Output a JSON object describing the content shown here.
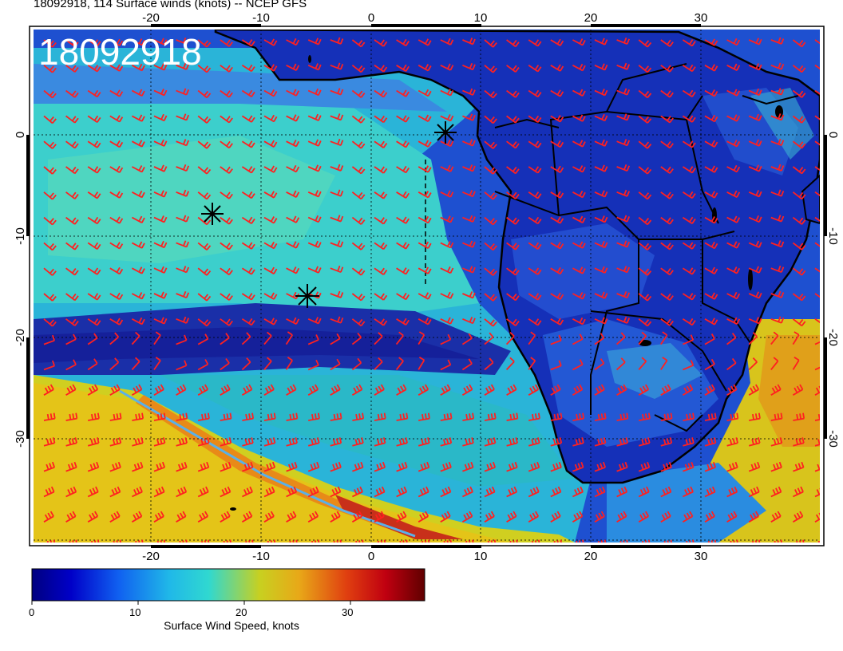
{
  "header": {
    "title": "18092918, 114 Surface winds (knots) -- NCEP GFS"
  },
  "map": {
    "date_stamp": "18092918",
    "lon_ticks": [
      "-20",
      "-10",
      "0",
      "10",
      "20",
      "30"
    ],
    "lat_ticks": [
      "0",
      "-10",
      "-20",
      "-30"
    ],
    "colors": {
      "calm": "#1a1aa8",
      "light": "#1e6fe0",
      "moderate": "#2fc8c8",
      "fresh": "#d8d21a",
      "strong": "#e0901a",
      "gale": "#b8101a",
      "barb": "#ff2020",
      "land_outline": "#000000"
    },
    "markers": [
      {
        "name": "star-marker-1"
      },
      {
        "name": "star-marker-2"
      },
      {
        "name": "star-marker-3"
      }
    ]
  },
  "colorbar": {
    "title": "Surface Wind Speed, knots",
    "ticks": [
      "0",
      "10",
      "20",
      "30"
    ],
    "range": [
      0,
      37
    ]
  }
}
